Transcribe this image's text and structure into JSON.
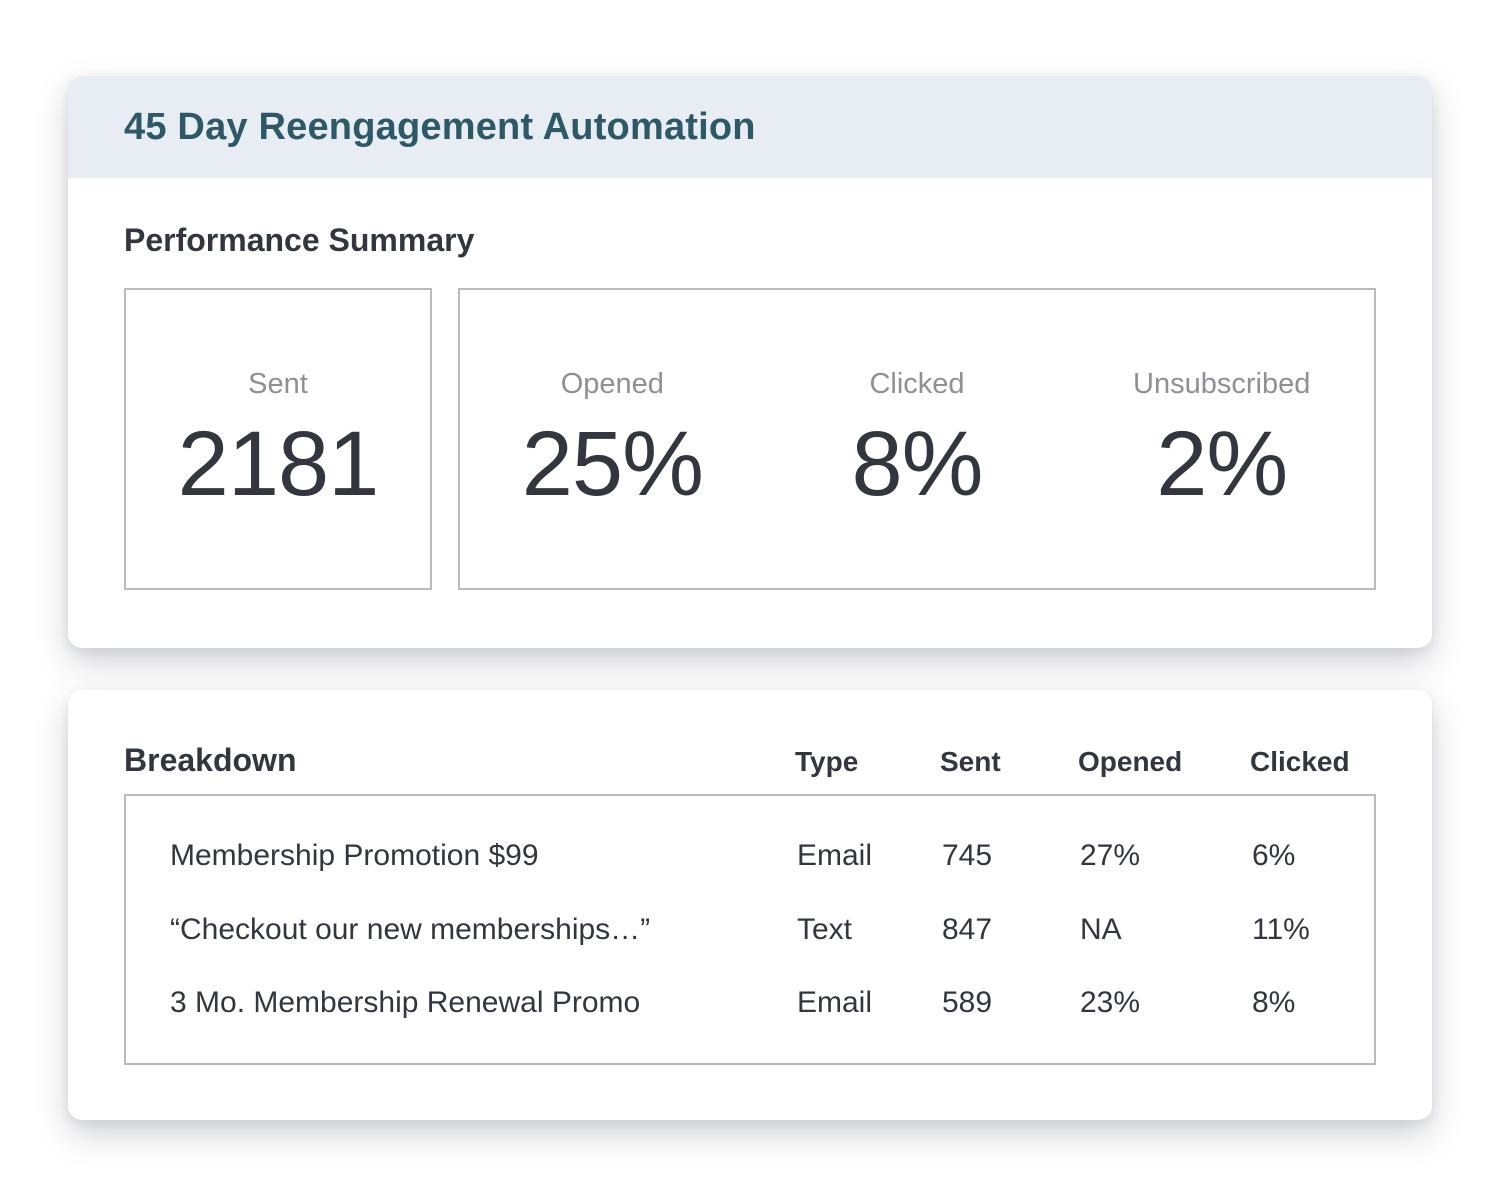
{
  "colors": {
    "band_background": "#e8edf4",
    "title_teal": "#2d5966",
    "text_dark": "#33363e",
    "label_gray": "#8e9094",
    "box_border": "#b9bbbc"
  },
  "automation_card": {
    "title": "45 Day Reengagement Automation",
    "section_title": "Performance Summary",
    "sent_metric": {
      "label": "Sent",
      "value": "2181"
    },
    "rate_metrics": [
      {
        "label": "Opened",
        "value": "25%"
      },
      {
        "label": "Clicked",
        "value": "8%"
      },
      {
        "label": "Unsubscribed",
        "value": "2%"
      }
    ]
  },
  "breakdown_card": {
    "title": "Breakdown",
    "columns": [
      "Type",
      "Sent",
      "Opened",
      "Clicked"
    ],
    "rows": [
      {
        "name": "Membership Promotion $99",
        "type": "Email",
        "sent": "745",
        "opened": "27%",
        "clicked": "6%"
      },
      {
        "name": "“Checkout our new memberships…”",
        "type": "Text",
        "sent": "847",
        "opened": "NA",
        "clicked": "11%"
      },
      {
        "name": "3 Mo. Membership Renewal Promo",
        "type": "Email",
        "sent": "589",
        "opened": "23%",
        "clicked": "8%"
      }
    ]
  }
}
